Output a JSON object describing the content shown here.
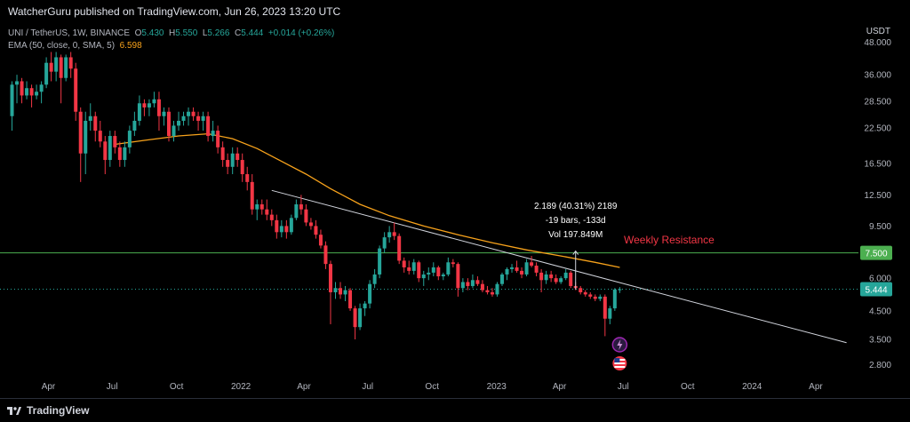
{
  "header": {
    "publisher": "WatcherGuru published on TradingView.com, Jun 26, 2023 13:20 UTC",
    "currency": "USDT"
  },
  "legend": {
    "symbol": "UNI / TetherUS, 1W, BINANCE",
    "o_label": "O",
    "o": "5.430",
    "h_label": "H",
    "h": "5.550",
    "l_label": "L",
    "l": "5.266",
    "c_label": "C",
    "c": "5.444",
    "change": "+0.014 (+0.26%)",
    "ema_label": "EMA (50, close, 0, SMA, 5)",
    "ema_value": "6.598"
  },
  "colors": {
    "up": "#26a69a",
    "down": "#f23645",
    "ema": "#f7a21b",
    "resistance": "#4caf50",
    "trend": "#d1d4dc"
  },
  "chart_data": {
    "type": "candlestick",
    "y_scale": "log",
    "ylim": [
      2.6,
      55
    ],
    "price_ticks": [
      "48.000",
      "36.000",
      "28.500",
      "22.500",
      "16.500",
      "12.500",
      "9.500",
      "6.000",
      "4.500",
      "3.500",
      "2.800"
    ],
    "time_ticks": [
      "Apr",
      "Jul",
      "Oct",
      "2022",
      "Apr",
      "Jul",
      "Oct",
      "2023",
      "Apr",
      "Jul",
      "Oct",
      "2024",
      "Apr"
    ],
    "x_range": [
      "2021-02-01",
      "2024-06-01"
    ],
    "candles": [
      {
        "date": "2021-02-08",
        "o": 25,
        "h": 34,
        "l": 22,
        "c": 33
      },
      {
        "date": "2021-02-15",
        "o": 33,
        "h": 36,
        "l": 28,
        "c": 34
      },
      {
        "date": "2021-02-22",
        "o": 34,
        "h": 35,
        "l": 28,
        "c": 30
      },
      {
        "date": "2021-03-01",
        "o": 30,
        "h": 34,
        "l": 29,
        "c": 32
      },
      {
        "date": "2021-03-08",
        "o": 32,
        "h": 33,
        "l": 27,
        "c": 30
      },
      {
        "date": "2021-03-15",
        "o": 30,
        "h": 33,
        "l": 29,
        "c": 31
      },
      {
        "date": "2021-03-22",
        "o": 31,
        "h": 34,
        "l": 28,
        "c": 33
      },
      {
        "date": "2021-03-29",
        "o": 33,
        "h": 42,
        "l": 32,
        "c": 40
      },
      {
        "date": "2021-04-05",
        "o": 40,
        "h": 44,
        "l": 34,
        "c": 37
      },
      {
        "date": "2021-04-12",
        "o": 37,
        "h": 44,
        "l": 34,
        "c": 42
      },
      {
        "date": "2021-04-19",
        "o": 42,
        "h": 43,
        "l": 28,
        "c": 35
      },
      {
        "date": "2021-04-26",
        "o": 35,
        "h": 43,
        "l": 34,
        "c": 42
      },
      {
        "date": "2021-05-03",
        "o": 42,
        "h": 44,
        "l": 35,
        "c": 38
      },
      {
        "date": "2021-05-10",
        "o": 38,
        "h": 40,
        "l": 24,
        "c": 26
      },
      {
        "date": "2021-05-17",
        "o": 26,
        "h": 27,
        "l": 14,
        "c": 18
      },
      {
        "date": "2021-05-24",
        "o": 18,
        "h": 26,
        "l": 15,
        "c": 24
      },
      {
        "date": "2021-05-31",
        "o": 24,
        "h": 28,
        "l": 22,
        "c": 25
      },
      {
        "date": "2021-06-07",
        "o": 25,
        "h": 26,
        "l": 20,
        "c": 22
      },
      {
        "date": "2021-06-14",
        "o": 22,
        "h": 24,
        "l": 19,
        "c": 20
      },
      {
        "date": "2021-06-21",
        "o": 20,
        "h": 21,
        "l": 15,
        "c": 17
      },
      {
        "date": "2021-06-28",
        "o": 17,
        "h": 22,
        "l": 16,
        "c": 21
      },
      {
        "date": "2021-07-05",
        "o": 21,
        "h": 22,
        "l": 18,
        "c": 19
      },
      {
        "date": "2021-07-12",
        "o": 19,
        "h": 20,
        "l": 16,
        "c": 17
      },
      {
        "date": "2021-07-19",
        "o": 17,
        "h": 20,
        "l": 16,
        "c": 19
      },
      {
        "date": "2021-07-26",
        "o": 19,
        "h": 23,
        "l": 18,
        "c": 22
      },
      {
        "date": "2021-08-02",
        "o": 22,
        "h": 26,
        "l": 21,
        "c": 24
      },
      {
        "date": "2021-08-09",
        "o": 24,
        "h": 30,
        "l": 23,
        "c": 28
      },
      {
        "date": "2021-08-16",
        "o": 28,
        "h": 29,
        "l": 25,
        "c": 27
      },
      {
        "date": "2021-08-23",
        "o": 27,
        "h": 29,
        "l": 25,
        "c": 28
      },
      {
        "date": "2021-08-30",
        "o": 28,
        "h": 31,
        "l": 27,
        "c": 29
      },
      {
        "date": "2021-09-06",
        "o": 29,
        "h": 31,
        "l": 22,
        "c": 25
      },
      {
        "date": "2021-09-13",
        "o": 25,
        "h": 27,
        "l": 23,
        "c": 26
      },
      {
        "date": "2021-09-20",
        "o": 26,
        "h": 27,
        "l": 20,
        "c": 21
      },
      {
        "date": "2021-09-27",
        "o": 21,
        "h": 24,
        "l": 20,
        "c": 23
      },
      {
        "date": "2021-10-04",
        "o": 23,
        "h": 26,
        "l": 22,
        "c": 24
      },
      {
        "date": "2021-10-11",
        "o": 24,
        "h": 26,
        "l": 23,
        "c": 25
      },
      {
        "date": "2021-10-18",
        "o": 25,
        "h": 27,
        "l": 23,
        "c": 26
      },
      {
        "date": "2021-10-25",
        "o": 26,
        "h": 27,
        "l": 24,
        "c": 25
      },
      {
        "date": "2021-11-01",
        "o": 25,
        "h": 26,
        "l": 22,
        "c": 24
      },
      {
        "date": "2021-11-08",
        "o": 24,
        "h": 26,
        "l": 22,
        "c": 25
      },
      {
        "date": "2021-11-15",
        "o": 25,
        "h": 26,
        "l": 20,
        "c": 21
      },
      {
        "date": "2021-11-22",
        "o": 21,
        "h": 24,
        "l": 20,
        "c": 22
      },
      {
        "date": "2021-11-29",
        "o": 22,
        "h": 23,
        "l": 18,
        "c": 19
      },
      {
        "date": "2021-12-06",
        "o": 19,
        "h": 20,
        "l": 16,
        "c": 17
      },
      {
        "date": "2021-12-13",
        "o": 17,
        "h": 18,
        "l": 15,
        "c": 16
      },
      {
        "date": "2021-12-20",
        "o": 16,
        "h": 19,
        "l": 15,
        "c": 18
      },
      {
        "date": "2021-12-27",
        "o": 18,
        "h": 19,
        "l": 16,
        "c": 17
      },
      {
        "date": "2022-01-03",
        "o": 17,
        "h": 18,
        "l": 14,
        "c": 15
      },
      {
        "date": "2022-01-10",
        "o": 15,
        "h": 16,
        "l": 13,
        "c": 14
      },
      {
        "date": "2022-01-17",
        "o": 14,
        "h": 15,
        "l": 10.5,
        "c": 11
      },
      {
        "date": "2022-01-24",
        "o": 11,
        "h": 12,
        "l": 10,
        "c": 11.5
      },
      {
        "date": "2022-01-31",
        "o": 11.5,
        "h": 12,
        "l": 10.5,
        "c": 11
      },
      {
        "date": "2022-02-07",
        "o": 11,
        "h": 12,
        "l": 10,
        "c": 10.5
      },
      {
        "date": "2022-02-14",
        "o": 10.5,
        "h": 11,
        "l": 9.5,
        "c": 10
      },
      {
        "date": "2022-02-21",
        "o": 10,
        "h": 10.5,
        "l": 8.5,
        "c": 9
      },
      {
        "date": "2022-02-28",
        "o": 9,
        "h": 10,
        "l": 8.6,
        "c": 9.5
      },
      {
        "date": "2022-03-07",
        "o": 9.5,
        "h": 10,
        "l": 8.5,
        "c": 9
      },
      {
        "date": "2022-03-14",
        "o": 9,
        "h": 10.5,
        "l": 8.8,
        "c": 10.2
      },
      {
        "date": "2022-03-21",
        "o": 10.2,
        "h": 12,
        "l": 10,
        "c": 11.5
      },
      {
        "date": "2022-03-28",
        "o": 11.5,
        "h": 12.5,
        "l": 10.5,
        "c": 11
      },
      {
        "date": "2022-04-04",
        "o": 11,
        "h": 11.5,
        "l": 9.5,
        "c": 9.8
      },
      {
        "date": "2022-04-11",
        "o": 9.8,
        "h": 10.2,
        "l": 9.2,
        "c": 9.5
      },
      {
        "date": "2022-04-18",
        "o": 9.5,
        "h": 10,
        "l": 8.5,
        "c": 8.8
      },
      {
        "date": "2022-04-25",
        "o": 8.8,
        "h": 9.2,
        "l": 7.8,
        "c": 8
      },
      {
        "date": "2022-05-02",
        "o": 8,
        "h": 8.3,
        "l": 6.5,
        "c": 6.8
      },
      {
        "date": "2022-05-09",
        "o": 6.8,
        "h": 7,
        "l": 4.0,
        "c": 5.3
      },
      {
        "date": "2022-05-16",
        "o": 5.3,
        "h": 5.8,
        "l": 5,
        "c": 5.5
      },
      {
        "date": "2022-05-23",
        "o": 5.5,
        "h": 5.8,
        "l": 5,
        "c": 5.2
      },
      {
        "date": "2022-05-30",
        "o": 5.2,
        "h": 5.6,
        "l": 4.9,
        "c": 5.4
      },
      {
        "date": "2022-06-06",
        "o": 5.4,
        "h": 5.5,
        "l": 4.5,
        "c": 4.6
      },
      {
        "date": "2022-06-13",
        "o": 4.6,
        "h": 4.7,
        "l": 3.5,
        "c": 3.9
      },
      {
        "date": "2022-06-20",
        "o": 3.9,
        "h": 4.8,
        "l": 3.8,
        "c": 4.6
      },
      {
        "date": "2022-06-27",
        "o": 4.6,
        "h": 4.9,
        "l": 4.3,
        "c": 4.8
      },
      {
        "date": "2022-07-04",
        "o": 4.8,
        "h": 5.9,
        "l": 4.6,
        "c": 5.7
      },
      {
        "date": "2022-07-11",
        "o": 5.7,
        "h": 6.5,
        "l": 5.5,
        "c": 6.2
      },
      {
        "date": "2022-07-18",
        "o": 6.2,
        "h": 8.0,
        "l": 6.0,
        "c": 7.8
      },
      {
        "date": "2022-07-25",
        "o": 7.8,
        "h": 9.0,
        "l": 7.5,
        "c": 8.6
      },
      {
        "date": "2022-08-01",
        "o": 8.6,
        "h": 9.5,
        "l": 8.2,
        "c": 9.0
      },
      {
        "date": "2022-08-08",
        "o": 9.0,
        "h": 9.8,
        "l": 8.4,
        "c": 8.7
      },
      {
        "date": "2022-08-15",
        "o": 8.7,
        "h": 8.9,
        "l": 6.8,
        "c": 7.0
      },
      {
        "date": "2022-08-22",
        "o": 7.0,
        "h": 7.2,
        "l": 6.3,
        "c": 6.6
      },
      {
        "date": "2022-08-29",
        "o": 6.6,
        "h": 7.0,
        "l": 6.2,
        "c": 6.4
      },
      {
        "date": "2022-09-05",
        "o": 6.4,
        "h": 7.1,
        "l": 6.2,
        "c": 6.9
      },
      {
        "date": "2022-09-12",
        "o": 6.9,
        "h": 7.0,
        "l": 5.8,
        "c": 6.0
      },
      {
        "date": "2022-09-19",
        "o": 6.0,
        "h": 6.4,
        "l": 5.6,
        "c": 6.2
      },
      {
        "date": "2022-09-26",
        "o": 6.2,
        "h": 6.6,
        "l": 5.9,
        "c": 6.3
      },
      {
        "date": "2022-10-03",
        "o": 6.3,
        "h": 6.9,
        "l": 6.1,
        "c": 6.6
      },
      {
        "date": "2022-10-10",
        "o": 6.6,
        "h": 6.7,
        "l": 5.9,
        "c": 6.1
      },
      {
        "date": "2022-10-17",
        "o": 6.1,
        "h": 6.3,
        "l": 5.9,
        "c": 6.2
      },
      {
        "date": "2022-10-24",
        "o": 6.2,
        "h": 7.2,
        "l": 6.1,
        "c": 6.9
      },
      {
        "date": "2022-10-31",
        "o": 6.9,
        "h": 7.1,
        "l": 6.6,
        "c": 6.8
      },
      {
        "date": "2022-11-07",
        "o": 6.8,
        "h": 6.9,
        "l": 5.1,
        "c": 5.5
      },
      {
        "date": "2022-11-14",
        "o": 5.5,
        "h": 6.0,
        "l": 5.3,
        "c": 5.8
      },
      {
        "date": "2022-11-21",
        "o": 5.8,
        "h": 6.0,
        "l": 5.4,
        "c": 5.6
      },
      {
        "date": "2022-11-28",
        "o": 5.6,
        "h": 6.2,
        "l": 5.5,
        "c": 5.9
      },
      {
        "date": "2022-12-05",
        "o": 5.9,
        "h": 6.1,
        "l": 5.6,
        "c": 5.7
      },
      {
        "date": "2022-12-12",
        "o": 5.7,
        "h": 5.9,
        "l": 5.3,
        "c": 5.4
      },
      {
        "date": "2022-12-19",
        "o": 5.4,
        "h": 5.6,
        "l": 5.2,
        "c": 5.3
      },
      {
        "date": "2022-12-26",
        "o": 5.3,
        "h": 5.5,
        "l": 5.1,
        "c": 5.2
      },
      {
        "date": "2023-01-02",
        "o": 5.2,
        "h": 5.8,
        "l": 5.1,
        "c": 5.7
      },
      {
        "date": "2023-01-09",
        "o": 5.7,
        "h": 6.3,
        "l": 5.6,
        "c": 6.2
      },
      {
        "date": "2023-01-16",
        "o": 6.2,
        "h": 6.6,
        "l": 5.9,
        "c": 6.5
      },
      {
        "date": "2023-01-23",
        "o": 6.5,
        "h": 6.8,
        "l": 6.3,
        "c": 6.6
      },
      {
        "date": "2023-01-30",
        "o": 6.6,
        "h": 7.0,
        "l": 6.3,
        "c": 6.4
      },
      {
        "date": "2023-02-06",
        "o": 6.4,
        "h": 6.6,
        "l": 6.0,
        "c": 6.2
      },
      {
        "date": "2023-02-13",
        "o": 6.2,
        "h": 7.1,
        "l": 6.1,
        "c": 6.9
      },
      {
        "date": "2023-02-20",
        "o": 6.9,
        "h": 7.3,
        "l": 6.6,
        "c": 6.7
      },
      {
        "date": "2023-02-27",
        "o": 6.7,
        "h": 6.9,
        "l": 6.1,
        "c": 6.3
      },
      {
        "date": "2023-03-06",
        "o": 6.3,
        "h": 6.5,
        "l": 5.3,
        "c": 5.9
      },
      {
        "date": "2023-03-13",
        "o": 5.9,
        "h": 6.4,
        "l": 5.7,
        "c": 6.2
      },
      {
        "date": "2023-03-20",
        "o": 6.2,
        "h": 6.4,
        "l": 5.8,
        "c": 6.0
      },
      {
        "date": "2023-03-27",
        "o": 6.0,
        "h": 6.2,
        "l": 5.7,
        "c": 5.8
      },
      {
        "date": "2023-04-03",
        "o": 5.8,
        "h": 6.1,
        "l": 5.7,
        "c": 6.0
      },
      {
        "date": "2023-04-10",
        "o": 6.0,
        "h": 6.5,
        "l": 5.9,
        "c": 6.3
      },
      {
        "date": "2023-04-17",
        "o": 6.3,
        "h": 6.4,
        "l": 5.5,
        "c": 5.6
      },
      {
        "date": "2023-04-24",
        "o": 5.6,
        "h": 5.8,
        "l": 5.4,
        "c": 5.5
      },
      {
        "date": "2023-05-01",
        "o": 5.5,
        "h": 5.6,
        "l": 5.2,
        "c": 5.3
      },
      {
        "date": "2023-05-08",
        "o": 5.3,
        "h": 5.4,
        "l": 5.1,
        "c": 5.2
      },
      {
        "date": "2023-05-15",
        "o": 5.2,
        "h": 5.3,
        "l": 5.0,
        "c": 5.1
      },
      {
        "date": "2023-05-22",
        "o": 5.1,
        "h": 5.2,
        "l": 4.9,
        "c": 5.0
      },
      {
        "date": "2023-05-29",
        "o": 5.0,
        "h": 5.2,
        "l": 4.9,
        "c": 5.1
      },
      {
        "date": "2023-06-05",
        "o": 5.1,
        "h": 5.2,
        "l": 3.6,
        "c": 4.2
      },
      {
        "date": "2023-06-12",
        "o": 4.2,
        "h": 4.7,
        "l": 4.0,
        "c": 4.6
      },
      {
        "date": "2023-06-19",
        "o": 4.6,
        "h": 5.5,
        "l": 4.5,
        "c": 5.43
      },
      {
        "date": "2023-06-26",
        "o": 5.43,
        "h": 5.55,
        "l": 5.266,
        "c": 5.444
      }
    ],
    "ema": [
      {
        "date": "2021-07-05",
        "v": 19.5
      },
      {
        "date": "2021-08-16",
        "v": 20.2
      },
      {
        "date": "2021-10-04",
        "v": 21.0
      },
      {
        "date": "2021-11-15",
        "v": 21.4
      },
      {
        "date": "2021-12-20",
        "v": 20.5
      },
      {
        "date": "2022-01-24",
        "v": 18.8
      },
      {
        "date": "2022-02-28",
        "v": 16.8
      },
      {
        "date": "2022-04-04",
        "v": 15.0
      },
      {
        "date": "2022-05-09",
        "v": 13.2
      },
      {
        "date": "2022-06-20",
        "v": 11.5
      },
      {
        "date": "2022-08-01",
        "v": 10.4
      },
      {
        "date": "2022-09-19",
        "v": 9.5
      },
      {
        "date": "2022-11-07",
        "v": 8.8
      },
      {
        "date": "2022-12-26",
        "v": 8.2
      },
      {
        "date": "2023-02-13",
        "v": 7.7
      },
      {
        "date": "2023-04-03",
        "v": 7.3
      },
      {
        "date": "2023-05-22",
        "v": 6.9
      },
      {
        "date": "2023-06-26",
        "v": 6.598
      }
    ],
    "resistance": {
      "price": 7.5,
      "label": "7.500",
      "annotation": "Weekly Resistance"
    },
    "current_price": {
      "price": 5.444,
      "label": "5.444"
    },
    "trendline": {
      "start": {
        "date": "2022-02-14",
        "price": 13.0
      },
      "end": {
        "date": "2024-05-15",
        "price": 3.4
      }
    },
    "measure": {
      "line1": "2.189 (40.31%) 2189",
      "line2": "-19 bars, -133d",
      "line3": "Vol 197.849M",
      "date": "2023-04-24",
      "from": 5.43,
      "to": 7.62
    },
    "events": [
      {
        "date": "2023-06-26",
        "type": "flash-icon"
      },
      {
        "date": "2023-06-26",
        "type": "us-flag-icon"
      }
    ]
  },
  "footer": {
    "brand": "TradingView"
  }
}
